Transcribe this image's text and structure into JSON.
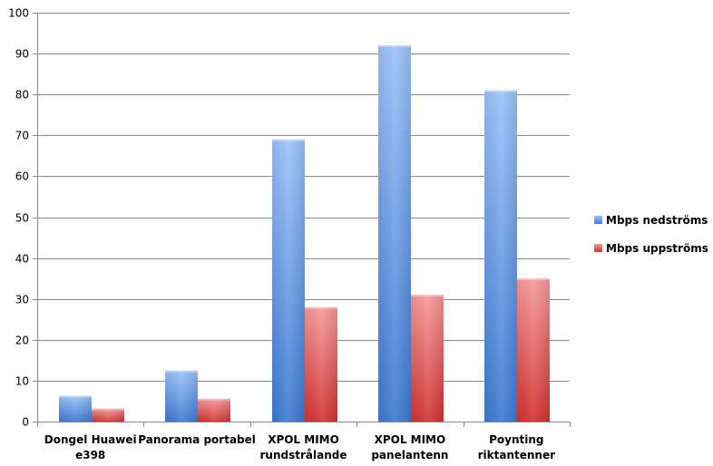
{
  "chart_data": {
    "type": "bar",
    "title": "",
    "xlabel": "",
    "ylabel": "",
    "ylim": [
      0,
      100
    ],
    "yticks": [
      0,
      10,
      20,
      30,
      40,
      50,
      60,
      70,
      80,
      90,
      100
    ],
    "grid": true,
    "legend_position": "right",
    "categories": [
      [
        "Dongel Huawei",
        "e398"
      ],
      [
        "Panorama portabel"
      ],
      [
        "XPOL MIMO",
        "rundstrålande"
      ],
      [
        "XPOL MIMO",
        "panelantenn"
      ],
      [
        "Poynting",
        "riktantenner"
      ]
    ],
    "series": [
      {
        "name": "Mbps nedströms",
        "color": "#4a86d6",
        "values": [
          6.3,
          12.5,
          69,
          92,
          81
        ]
      },
      {
        "name": "Mbps uppströms",
        "color": "#d93a3a",
        "values": [
          3.2,
          5.6,
          28,
          31,
          35
        ]
      }
    ]
  }
}
